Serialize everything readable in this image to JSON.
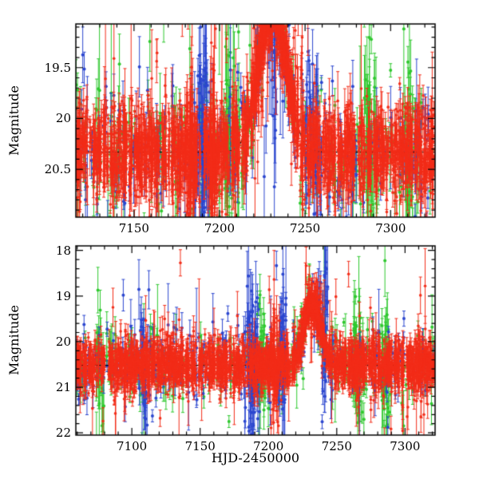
{
  "figure": {
    "background": "#ffffff"
  },
  "axes": {
    "magnitude_label": "Magnitude",
    "x_label": "HJD-2450000"
  },
  "chart_data": [
    {
      "type": "scatter",
      "panel": "top",
      "seed": 11,
      "title": "",
      "ylabel": "Magnitude",
      "xlabel": "",
      "magnitude_axis_inverted": true,
      "xlim": [
        7116,
        7326
      ],
      "ylim": [
        19.07,
        20.97
      ],
      "xticks": [
        7150,
        7200,
        7250,
        7300
      ],
      "xtick_labels": [
        "7150",
        "7200",
        "7250",
        "7300"
      ],
      "yticks": [
        19.5,
        20,
        20.5
      ],
      "ytick_labels": [
        "19.5",
        "20",
        "20.5"
      ],
      "minor_x": 10,
      "minor_y": 0.1,
      "event": {
        "t0": 7231,
        "sigma": 8,
        "peak_mag": 18.92,
        "baseline": 20.33
      },
      "model_line_color": "#000000",
      "series": [
        {
          "name": "green-telescope",
          "color": "#2ec82e",
          "n": 300,
          "scatter": 0.34,
          "err": 0.16,
          "gapP": 0.25,
          "outlierP": 0.07,
          "outlier": 2.2,
          "r": 2,
          "clusters": [
            {
              "t": 7207,
              "s": 6,
              "n": 55
            },
            {
              "t": 7288,
              "s": 5,
              "n": 45
            },
            {
              "t": 7310,
              "s": 4,
              "n": 35
            }
          ]
        },
        {
          "name": "blue-telescope",
          "color": "#2b46cf",
          "n": 340,
          "scatter": 0.3,
          "err": 0.14,
          "gapP": 0.25,
          "outlierP": 0.06,
          "outlier": 2.0,
          "r": 2,
          "clusters": [
            {
              "t": 7190,
              "s": 5,
              "n": 80
            },
            {
              "t": 7232,
              "s": 4,
              "n": 55
            },
            {
              "t": 7256,
              "s": 5,
              "n": 45
            },
            {
              "t": 7112,
              "s": 3,
              "n": 25
            }
          ]
        },
        {
          "name": "red-survey",
          "color": "#f22c18",
          "n": 2600,
          "scatter": 0.21,
          "err": 0.1,
          "gapP": 0.12,
          "outlierP": 0.05,
          "outlier": 1.6,
          "r": 1.8,
          "event_n": 650,
          "clusters": [
            {
              "t": 7183,
              "s": 3,
              "n": 70
            },
            {
              "t": 7196,
              "s": 3,
              "n": 60
            }
          ]
        }
      ]
    },
    {
      "type": "scatter",
      "panel": "bottom",
      "seed": 47,
      "title": "",
      "ylabel": "Magnitude",
      "xlabel": "HJD-2450000",
      "magnitude_axis_inverted": true,
      "xlim": [
        7059,
        7322
      ],
      "ylim": [
        17.9,
        22.05
      ],
      "xticks": [
        7100,
        7150,
        7200,
        7250,
        7300
      ],
      "xtick_labels": [
        "7100",
        "7150",
        "7200",
        "7250",
        "7300"
      ],
      "yticks": [
        18,
        19,
        20,
        21,
        22
      ],
      "ytick_labels": [
        "18",
        "19",
        "20",
        "21",
        "22"
      ],
      "minor_x": 10,
      "minor_y": 0.2,
      "event": {
        "t0": 7232,
        "sigma": 6,
        "peak_mag": 19.15,
        "baseline": 20.52
      },
      "model_line_color": "#000000",
      "series": [
        {
          "name": "green-telescope",
          "color": "#2ec82e",
          "n": 340,
          "scatter": 0.42,
          "err": 0.2,
          "gapP": 0.25,
          "outlierP": 0.08,
          "outlier": 2.4,
          "r": 2,
          "clusters": [
            {
              "t": 7265,
              "s": 5,
              "n": 45
            },
            {
              "t": 7286,
              "s": 4,
              "n": 40
            },
            {
              "t": 7196,
              "s": 5,
              "n": 35
            },
            {
              "t": 7076,
              "s": 4,
              "n": 25
            }
          ]
        },
        {
          "name": "blue-telescope",
          "color": "#2b46cf",
          "n": 400,
          "scatter": 0.38,
          "err": 0.18,
          "gapP": 0.25,
          "outlierP": 0.07,
          "outlier": 2.2,
          "r": 2,
          "clusters": [
            {
              "t": 7188,
              "s": 5,
              "n": 90
            },
            {
              "t": 7210,
              "s": 4,
              "n": 55
            },
            {
              "t": 7108,
              "s": 4,
              "n": 35
            },
            {
              "t": 7240,
              "s": 4,
              "n": 45
            }
          ]
        },
        {
          "name": "red-survey",
          "color": "#f22c18",
          "n": 3200,
          "scatter": 0.26,
          "err": 0.12,
          "gapP": 0.12,
          "outlierP": 0.05,
          "outlier": 1.8,
          "r": 1.8,
          "event_n": 600,
          "clusters": [
            {
              "t": 7205,
              "s": 4,
              "n": 80
            },
            {
              "t": 7310,
              "s": 2,
              "n": 30
            }
          ]
        }
      ]
    }
  ]
}
